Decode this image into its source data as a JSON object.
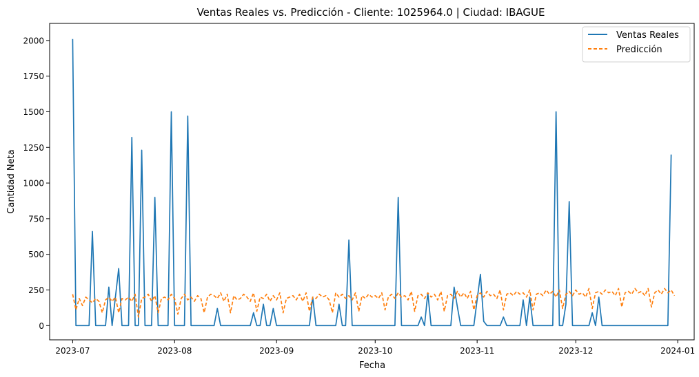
{
  "chart_data": {
    "type": "line",
    "title": "Ventas Reales vs. Predicción - Cliente: 1025964.0 | Ciudad: IBAGUE",
    "xlabel": "Fecha",
    "ylabel": "Cantidad Neta",
    "xlim": [
      "2023-06-24",
      "2024-01-06"
    ],
    "ylim": [
      -100,
      2120
    ],
    "x_ticks": [
      "2023-07-01",
      "2023-08-01",
      "2023-09-01",
      "2023-10-01",
      "2023-11-01",
      "2023-12-01",
      "2024-01-01"
    ],
    "x_tick_labels": [
      "2023-07",
      "2023-08",
      "2023-09",
      "2023-10",
      "2023-11",
      "2023-12",
      "2024-01"
    ],
    "y_ticks": [
      0,
      250,
      500,
      750,
      1000,
      1250,
      1500,
      1750,
      2000
    ],
    "y_tick_labels": [
      "0",
      "250",
      "500",
      "750",
      "1000",
      "1250",
      "1500",
      "1750",
      "2000"
    ],
    "grid": false,
    "legend_position": "top-right",
    "series": [
      {
        "name": "Ventas Reales",
        "color": "#1f77b4",
        "style": "solid",
        "points": [
          [
            "2023-07-01",
            2010
          ],
          [
            "2023-07-02",
            0
          ],
          [
            "2023-07-06",
            0
          ],
          [
            "2023-07-07",
            660
          ],
          [
            "2023-07-08",
            0
          ],
          [
            "2023-07-11",
            0
          ],
          [
            "2023-07-12",
            270
          ],
          [
            "2023-07-13",
            0
          ],
          [
            "2023-07-15",
            400
          ],
          [
            "2023-07-16",
            0
          ],
          [
            "2023-07-18",
            0
          ],
          [
            "2023-07-19",
            1320
          ],
          [
            "2023-07-20",
            0
          ],
          [
            "2023-07-21",
            0
          ],
          [
            "2023-07-22",
            1230
          ],
          [
            "2023-07-23",
            0
          ],
          [
            "2023-07-25",
            0
          ],
          [
            "2023-07-26",
            900
          ],
          [
            "2023-07-27",
            0
          ],
          [
            "2023-07-30",
            0
          ],
          [
            "2023-07-31",
            1500
          ],
          [
            "2023-08-01",
            0
          ],
          [
            "2023-08-04",
            0
          ],
          [
            "2023-08-05",
            1470
          ],
          [
            "2023-08-06",
            0
          ],
          [
            "2023-08-13",
            0
          ],
          [
            "2023-08-14",
            120
          ],
          [
            "2023-08-15",
            0
          ],
          [
            "2023-08-24",
            0
          ],
          [
            "2023-08-25",
            90
          ],
          [
            "2023-08-26",
            0
          ],
          [
            "2023-08-27",
            0
          ],
          [
            "2023-08-28",
            150
          ],
          [
            "2023-08-29",
            0
          ],
          [
            "2023-08-30",
            0
          ],
          [
            "2023-08-31",
            120
          ],
          [
            "2023-09-01",
            0
          ],
          [
            "2023-09-11",
            0
          ],
          [
            "2023-09-12",
            200
          ],
          [
            "2023-09-13",
            0
          ],
          [
            "2023-09-19",
            0
          ],
          [
            "2023-09-20",
            150
          ],
          [
            "2023-09-21",
            0
          ],
          [
            "2023-09-22",
            0
          ],
          [
            "2023-09-23",
            600
          ],
          [
            "2023-09-24",
            0
          ],
          [
            "2023-10-07",
            0
          ],
          [
            "2023-10-08",
            900
          ],
          [
            "2023-10-09",
            0
          ],
          [
            "2023-10-14",
            0
          ],
          [
            "2023-10-15",
            60
          ],
          [
            "2023-10-16",
            0
          ],
          [
            "2023-10-17",
            230
          ],
          [
            "2023-10-18",
            0
          ],
          [
            "2023-10-24",
            0
          ],
          [
            "2023-10-25",
            270
          ],
          [
            "2023-10-26",
            130
          ],
          [
            "2023-10-27",
            0
          ],
          [
            "2023-10-31",
            0
          ],
          [
            "2023-11-02",
            360
          ],
          [
            "2023-11-03",
            30
          ],
          [
            "2023-11-04",
            0
          ],
          [
            "2023-11-08",
            0
          ],
          [
            "2023-11-09",
            60
          ],
          [
            "2023-11-10",
            0
          ],
          [
            "2023-11-14",
            0
          ],
          [
            "2023-11-15",
            180
          ],
          [
            "2023-11-16",
            0
          ],
          [
            "2023-11-17",
            200
          ],
          [
            "2023-11-18",
            0
          ],
          [
            "2023-11-24",
            0
          ],
          [
            "2023-11-25",
            1500
          ],
          [
            "2023-11-26",
            0
          ],
          [
            "2023-11-27",
            0
          ],
          [
            "2023-11-28",
            150
          ],
          [
            "2023-11-29",
            870
          ],
          [
            "2023-11-30",
            0
          ],
          [
            "2023-12-05",
            0
          ],
          [
            "2023-12-06",
            90
          ],
          [
            "2023-12-07",
            0
          ],
          [
            "2023-12-08",
            200
          ],
          [
            "2023-12-09",
            0
          ],
          [
            "2023-12-29",
            0
          ],
          [
            "2023-12-30",
            1200
          ]
        ]
      },
      {
        "name": "Predicción",
        "color": "#ff7f0e",
        "style": "dashed",
        "start": "2023-07-01",
        "values": [
          220,
          110,
          190,
          140,
          200,
          180,
          160,
          190,
          170,
          90,
          180,
          200,
          170,
          200,
          90,
          190,
          180,
          200,
          170,
          220,
          60,
          190,
          200,
          220,
          170,
          210,
          90,
          190,
          200,
          180,
          220,
          190,
          80,
          190,
          220,
          180,
          200,
          170,
          210,
          190,
          90,
          200,
          220,
          210,
          190,
          230,
          170,
          220,
          90,
          210,
          180,
          190,
          220,
          200,
          170,
          230,
          100,
          200,
          190,
          220,
          170,
          210,
          180,
          230,
          90,
          190,
          200,
          210,
          180,
          220,
          170,
          230,
          100,
          200,
          190,
          220,
          200,
          210,
          180,
          90,
          230,
          200,
          220,
          190,
          210,
          180,
          230,
          100,
          210,
          190,
          220,
          200,
          210,
          190,
          230,
          110,
          200,
          220,
          190,
          230,
          200,
          210,
          180,
          240,
          100,
          210,
          220,
          190,
          230,
          200,
          220,
          180,
          240,
          100,
          210,
          220,
          190,
          240,
          200,
          230,
          190,
          240,
          110,
          210,
          230,
          200,
          240,
          210,
          220,
          190,
          250,
          110,
          220,
          230,
          210,
          240,
          220,
          230,
          200,
          250,
          110,
          220,
          230,
          210,
          250,
          220,
          240,
          200,
          250,
          120,
          220,
          240,
          210,
          250,
          220,
          230,
          200,
          260,
          120,
          230,
          240,
          220,
          250,
          230,
          240,
          210,
          260,
          130,
          230,
          240,
          220,
          260,
          230,
          240,
          210,
          260,
          130,
          230,
          250,
          220,
          260,
          230,
          250,
          210
        ]
      }
    ]
  }
}
